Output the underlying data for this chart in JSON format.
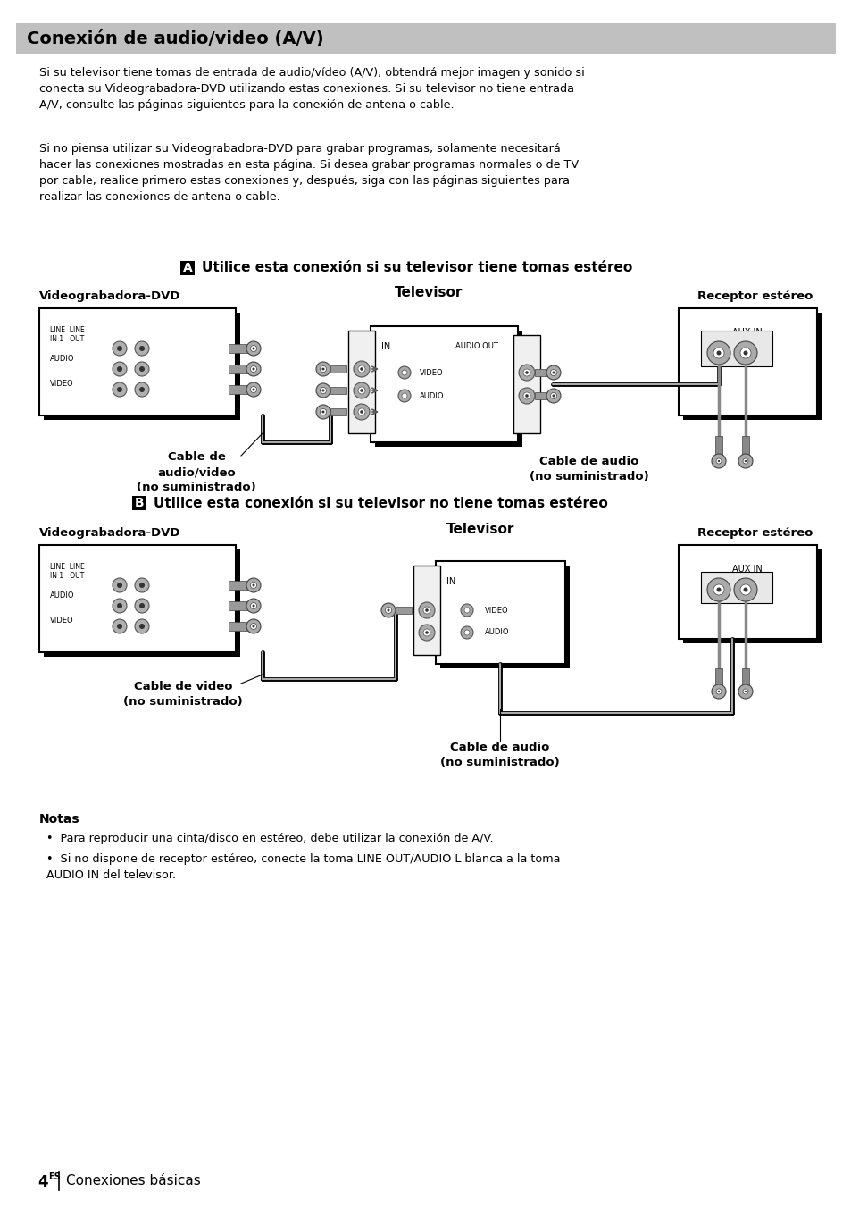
{
  "title": "Conexión de audio/video (A/V)",
  "body_text_1": "Si su televisor tiene tomas de entrada de audio/vídeo (A/V), obtendrá mejor imagen y sonido si\nconecta su Videograbadora-DVD utilizando estas conexiones. Si su televisor no tiene entrada\nA/V, consulte las páginas siguientes para la conexión de antena o cable.",
  "body_text_2": "Si no piensa utilizar su Videograbadora-DVD para grabar programas, solamente necesitará\nhacer las conexiones mostradas en esta página. Si desea grabar programas normales o de TV\npor cable, realice primero estas conexiones y, después, siga con las páginas siguientes para\nrealizar las conexiones de antena o cable.",
  "section_A_label": "A",
  "section_A_text": "Utilice esta conexión si su televisor tiene tomas estéreo",
  "section_B_label": "B",
  "section_B_text": "Utilice esta conexión si su televisor no tiene tomas estéreo",
  "label_dvd_A": "Videograbadora-DVD",
  "label_tv_A": "Televisor",
  "label_receptor_A": "Receptor estéreo",
  "label_cable_av_A": "Cable de\naudio/video\n(no suministrado)",
  "label_cable_audio_A": "Cable de audio\n(no suministrado)",
  "label_dvd_B": "Videograbadora-DVD",
  "label_tv_B": "Televisor",
  "label_receptor_B": "Receptor estéreo",
  "label_cable_video_B": "Cable de video\n(no suministrado)",
  "label_cable_audio_B": "Cable de audio\n(no suministrado)",
  "notes_title": "Notas",
  "note_1": "Para reproducir una cinta/disco en estéreo, debe utilizar la conexión de A/V.",
  "note_2": "Si no dispone de receptor estéreo, conecte la toma LINE OUT/AUDIO L blanca a la toma\nAUDIO IN del televisor.",
  "footer_num": "4",
  "footer_sup": "ES",
  "footer_text": "Conexiones básicas",
  "bg_color": "#ffffff",
  "title_bg": "#c0c0c0",
  "wire_color": "#888888",
  "wire_thick": "#000000"
}
